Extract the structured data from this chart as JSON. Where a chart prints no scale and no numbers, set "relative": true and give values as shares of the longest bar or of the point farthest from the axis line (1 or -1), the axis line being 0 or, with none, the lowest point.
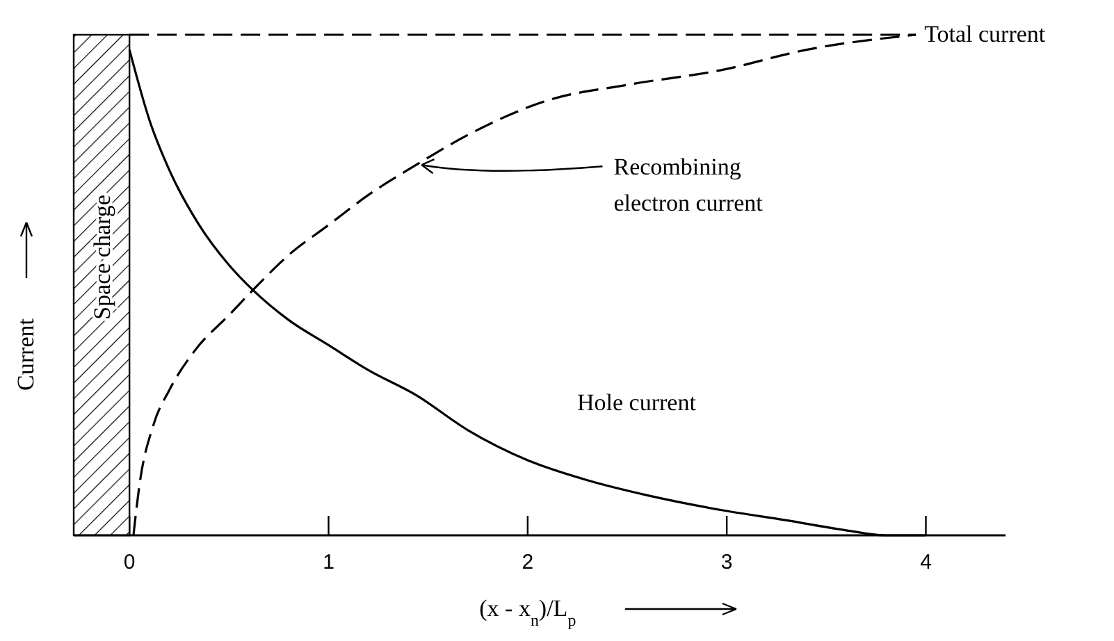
{
  "chart_data": {
    "type": "line",
    "relative": true,
    "xlabel": "(x - x$_{n}$)/L$_{p}$",
    "ylabel": "Current",
    "xlim": [
      -0.28,
      4.4
    ],
    "xticks": [
      0,
      1,
      2,
      3,
      4
    ],
    "bands": [
      {
        "axis": "x",
        "from": -0.28,
        "to": 0,
        "label": "Space charge"
      }
    ],
    "series": [
      {
        "color": "#000000",
        "line_style": "dashed",
        "x": [
          0,
          3.95
        ],
        "values": [
          1,
          1
        ]
      },
      {
        "color": "#000000",
        "line_style": "dashed",
        "x": [
          0.02,
          0.05,
          0.12,
          0.2,
          0.33,
          0.5,
          0.62,
          0.8,
          1.0,
          1.2,
          1.44,
          1.7,
          2.11,
          2.5,
          2.98,
          3.4,
          3.95
        ],
        "values": [
          0,
          0.1,
          0.22,
          0.29,
          0.37,
          0.44,
          0.49,
          0.56,
          0.62,
          0.68,
          0.74,
          0.8,
          0.87,
          0.9,
          0.93,
          0.97,
          1
        ]
      },
      {
        "color": "#000000",
        "line_style": "solid",
        "x": [
          0,
          0.1,
          0.2,
          0.35,
          0.5,
          0.62,
          0.8,
          1.0,
          1.2,
          1.44,
          1.7,
          2.0,
          2.3,
          2.6,
          2.98,
          3.3,
          3.6,
          3.8,
          4.0
        ],
        "values": [
          0.97,
          0.83,
          0.73,
          0.62,
          0.54,
          0.49,
          0.43,
          0.38,
          0.33,
          0.28,
          0.21,
          0.15,
          0.11,
          0.08,
          0.05,
          0.03,
          0.01,
          0,
          0
        ]
      }
    ],
    "annotations": [
      {
        "text": "Total current",
        "x": 3.95,
        "y": 1
      },
      {
        "text": "Recombining\nelectron current",
        "x": 1.44,
        "y": 0.74
      },
      "Hole current"
    ]
  }
}
